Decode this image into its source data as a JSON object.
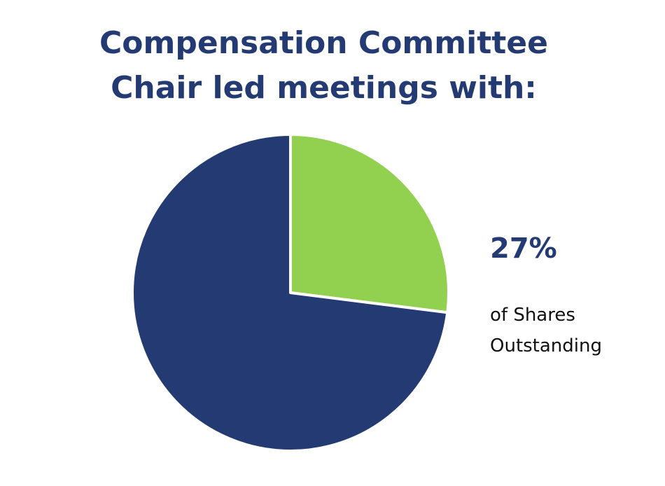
{
  "chart_data": {
    "type": "pie",
    "title_lines": [
      "Compensation Committee",
      "Chair led meetings with:"
    ],
    "slices": [
      {
        "name": "",
        "value": 27,
        "color": "#92d050"
      },
      {
        "name": "",
        "value": 73,
        "color": "#243a73"
      }
    ],
    "legend": "none"
  },
  "annotation": {
    "value_text": "27%",
    "caption_lines": [
      "of Shares",
      "Outstanding"
    ]
  },
  "colors": {
    "title": "#243a73",
    "accent": "#92d050",
    "primary": "#243a73"
  }
}
